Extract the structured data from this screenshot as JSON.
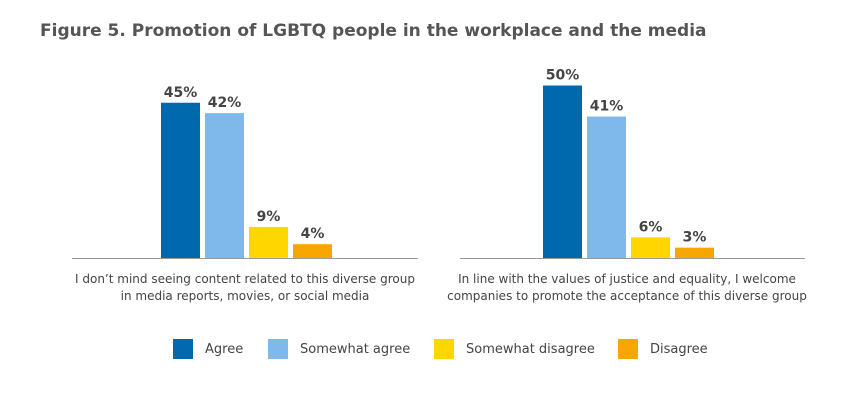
{
  "title": "Figure 5. Promotion of LGBTQ people in the workplace and the media",
  "chart_data": {
    "type": "bar",
    "title": "Figure 5. Promotion of LGBTQ people in the workplace and the media",
    "categories": [
      [
        "I don’t mind seeing content related to this diverse group",
        "in media reports, movies, or social media"
      ],
      [
        "In line with the values of justice and equality, I welcome",
        "companies to promote the acceptance of this diverse group"
      ]
    ],
    "series": [
      {
        "name": "Agree",
        "color": "#0068AC",
        "values": [
          45,
          50
        ],
        "labels": [
          "45%",
          "50%"
        ]
      },
      {
        "name": "Somewhat agree",
        "color": "#7FB8EB",
        "values": [
          42,
          41
        ],
        "labels": [
          "42%",
          "41%"
        ]
      },
      {
        "name": "Somewhat disagree",
        "color": "#FFD600",
        "values": [
          9,
          6
        ],
        "labels": [
          "9%",
          "6%"
        ]
      },
      {
        "name": "Disagree",
        "color": "#F7A600",
        "values": [
          4,
          3
        ],
        "labels": [
          "4%",
          "3%"
        ]
      }
    ],
    "ylim": [
      0,
      50
    ],
    "xlabel": "",
    "ylabel": "",
    "grid": false,
    "legend_position": "bottom"
  }
}
